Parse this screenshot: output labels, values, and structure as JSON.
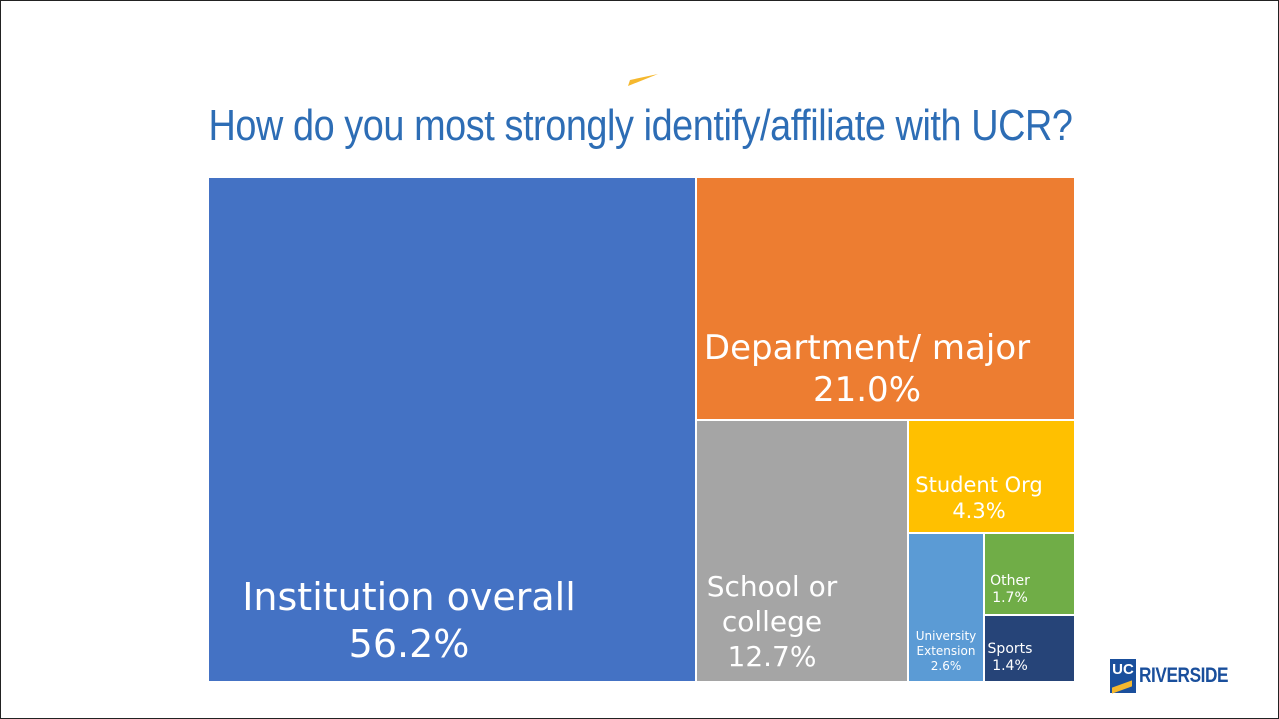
{
  "slide": {
    "title": "How do you most strongly identify/affiliate with UCR?",
    "accent_color": "#f5b82e",
    "logo": {
      "mark": "UC",
      "wordmark": "RIVERSIDE",
      "color": "#1a4f9c"
    }
  },
  "chart_data": {
    "type": "treemap",
    "title": "How do you most strongly identify/affiliate with UCR?",
    "unit": "%",
    "items": [
      {
        "label_lines": [
          "Institution overall"
        ],
        "value": 56.2,
        "value_label": "56.2%",
        "color": "#4472c4"
      },
      {
        "label_lines": [
          "Department/ major"
        ],
        "value": 21.0,
        "value_label": "21.0%",
        "color": "#ed7d31"
      },
      {
        "label_lines": [
          "School or",
          "college"
        ],
        "value": 12.7,
        "value_label": "12.7%",
        "color": "#a5a5a5"
      },
      {
        "label_lines": [
          "Student Org"
        ],
        "value": 4.3,
        "value_label": "4.3%",
        "color": "#ffc000"
      },
      {
        "label_lines": [
          "University",
          "Extension"
        ],
        "value": 2.6,
        "value_label": "2.6%",
        "color": "#5b9bd5"
      },
      {
        "label_lines": [
          "Other"
        ],
        "value": 1.7,
        "value_label": "1.7%",
        "color": "#70ad47"
      },
      {
        "label_lines": [
          "Sports"
        ],
        "value": 1.4,
        "value_label": "1.4%",
        "color": "#264478"
      }
    ]
  }
}
